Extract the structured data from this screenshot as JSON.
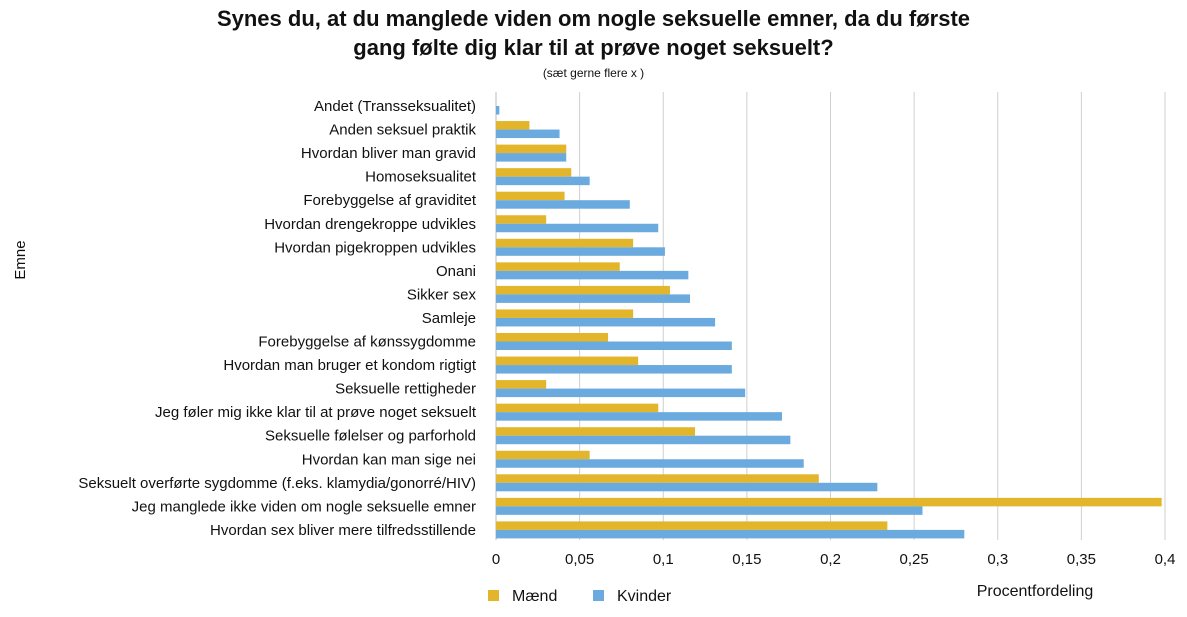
{
  "chart_data": {
    "type": "bar",
    "orientation": "horizontal",
    "title_line1": "Synes du, at du manglede viden om nogle seksuelle emner, da du første",
    "title_line2": "gang følte dig klar til at prøve noget seksuelt?",
    "subtitle": "(sæt gerne flere x )",
    "ylabel": "Emne",
    "xlabel": "Procentfordeling",
    "xlim": [
      0,
      0.4
    ],
    "xticks": [
      "0",
      "0,05",
      "0,1",
      "0,15",
      "0,2",
      "0,25",
      "0,3",
      "0,35",
      "0,4"
    ],
    "grid": "vertical",
    "legend_position": "bottom-left",
    "categories": [
      "Andet (Transseksualitet)",
      "Anden seksuel praktik",
      "Hvordan bliver man gravid",
      "Homoseksualitet",
      "Forebyggelse af graviditet",
      "Hvordan drengekroppe udvikles",
      "Hvordan pigekroppen udvikles",
      "Onani",
      "Sikker sex",
      "Samleje",
      "Forebyggelse af kønssygdomme",
      "Hvordan man bruger et kondom rigtigt",
      "Seksuelle rettigheder",
      "Jeg føler mig ikke klar til at prøve noget seksuelt",
      "Seksuelle følelser og parforhold",
      "Hvordan kan man sige nei",
      "Seksuelt overførte sygdomme (f.eks. klamydia/gonorré/HIV)",
      "Jeg manglede ikke viden om nogle seksuelle emner",
      "Hvordan sex bliver mere tilfredsstillende"
    ],
    "series": [
      {
        "name": "Mænd",
        "color": "#E3B52A",
        "values": [
          0,
          0.02,
          0.042,
          0.045,
          0.041,
          0.03,
          0.082,
          0.074,
          0.104,
          0.082,
          0.067,
          0.085,
          0.03,
          0.097,
          0.119,
          0.056,
          0.193,
          0.398,
          0.234
        ]
      },
      {
        "name": "Kvinder",
        "color": "#6AAADE",
        "values": [
          0.002,
          0.038,
          0.042,
          0.056,
          0.08,
          0.097,
          0.101,
          0.115,
          0.116,
          0.131,
          0.141,
          0.141,
          0.149,
          0.171,
          0.176,
          0.184,
          0.228,
          0.255,
          0.28
        ]
      }
    ]
  }
}
